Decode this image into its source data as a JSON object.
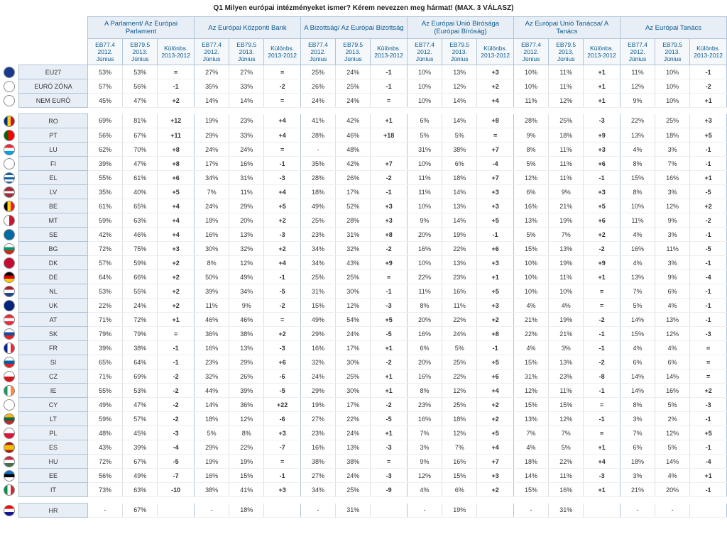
{
  "title": "Q1 Milyen európai intézményeket ismer? Kérem nevezzen meg hármat! (MAX. 3 VÁLASZ)",
  "groups": [
    "A Parlament/ Az Európai Parlament",
    "Az Európai Központi Bank",
    "A Bizottság/ Az Európai Bizottság",
    "Az Európai Unió Bírósága (Európai Bíróság)",
    "Az Európai Unió Tanácsa/ A Tanács",
    "Az Európai Tanács"
  ],
  "subcols": [
    "EB77.4 2012. Június",
    "EB79.5 2013. Június",
    "Különbs. 2013-2012"
  ],
  "flag_colors": {
    "EU27": "#1a3a8e",
    "EURÓ ZÓNA": "#ffffff",
    "NEM EURÓ": "#ffffff",
    "RO": "linear-gradient(90deg,#002b7f 33%,#fcd116 33% 66%,#ce1126 66%)",
    "PT": "linear-gradient(90deg,#006600 40%,#ff0000 40%)",
    "LU": "linear-gradient(#ed2939 33%,#fff 33% 66%,#00a1de 66%)",
    "FI": "#fff",
    "EL": "repeating-linear-gradient(#0d5eaf 0 3px,#fff 3px 6px)",
    "LV": "linear-gradient(#9e3039 40%,#fff 40% 60%,#9e3039 60%)",
    "BE": "linear-gradient(90deg,#000 33%,#ffd90c 33% 66%,#f31830 66%)",
    "MT": "linear-gradient(90deg,#fff 50%,#cf142b 50%)",
    "SE": "#006aa7",
    "BG": "linear-gradient(#fff 33%,#00966e 33% 66%,#d62612 66%)",
    "DK": "#c60c30",
    "DE": "linear-gradient(#000 33%,#dd0000 33% 66%,#ffce00 66%)",
    "NL": "linear-gradient(#ae1c28 33%,#fff 33% 66%,#21468b 66%)",
    "UK": "#00247d",
    "AT": "linear-gradient(#ed2939 33%,#fff 33% 66%,#ed2939 66%)",
    "SK": "linear-gradient(#fff 33%,#0b4ea2 33% 66%,#ee1c25 66%)",
    "FR": "linear-gradient(90deg,#002395 33%,#fff 33% 66%,#ed2939 66%)",
    "SI": "linear-gradient(#fff 33%,#005da4 33% 66%,#ed1c24 66%)",
    "CZ": "linear-gradient(#fff 50%,#d7141a 50%)",
    "IE": "linear-gradient(90deg,#169b62 33%,#fff 33% 66%,#ff883e 66%)",
    "CY": "#fff",
    "LT": "linear-gradient(#fdb913 33%,#006a44 33% 66%,#c1272d 66%)",
    "PL": "linear-gradient(#fff 50%,#dc143c 50%)",
    "ES": "linear-gradient(#aa151b 25%,#f1bf00 25% 75%,#aa151b 75%)",
    "HU": "linear-gradient(#cd2a3e 33%,#fff 33% 66%,#436f4d 66%)",
    "EE": "linear-gradient(#0072ce 33%,#000 33% 66%,#fff 66%)",
    "IT": "linear-gradient(90deg,#009246 33%,#fff 33% 66%,#ce2b37 66%)",
    "HR": "linear-gradient(#ff0000 33%,#fff 33% 66%,#171796 66%)"
  },
  "sections": [
    [
      {
        "label": "EU27",
        "v": [
          "53%",
          "53%",
          "=",
          "27%",
          "27%",
          "=",
          "25%",
          "24%",
          "-1",
          "10%",
          "13%",
          "+3",
          "10%",
          "11%",
          "+1",
          "11%",
          "10%",
          "-1"
        ]
      },
      {
        "label": "EURÓ ZÓNA",
        "v": [
          "57%",
          "56%",
          "-1",
          "35%",
          "33%",
          "-2",
          "26%",
          "25%",
          "-1",
          "10%",
          "12%",
          "+2",
          "10%",
          "11%",
          "+1",
          "12%",
          "10%",
          "-2"
        ]
      },
      {
        "label": "NEM EURÓ",
        "v": [
          "45%",
          "47%",
          "+2",
          "14%",
          "14%",
          "=",
          "24%",
          "24%",
          "=",
          "10%",
          "14%",
          "+4",
          "11%",
          "12%",
          "+1",
          "9%",
          "10%",
          "+1"
        ]
      }
    ],
    [
      {
        "label": "RO",
        "v": [
          "69%",
          "81%",
          "+12",
          "19%",
          "23%",
          "+4",
          "41%",
          "42%",
          "+1",
          "6%",
          "14%",
          "+8",
          "28%",
          "25%",
          "-3",
          "22%",
          "25%",
          "+3"
        ]
      },
      {
        "label": "PT",
        "v": [
          "56%",
          "67%",
          "+11",
          "29%",
          "33%",
          "+4",
          "28%",
          "46%",
          "+18",
          "5%",
          "5%",
          "=",
          "9%",
          "18%",
          "+9",
          "13%",
          "18%",
          "+5"
        ]
      },
      {
        "label": "LU",
        "v": [
          "62%",
          "70%",
          "+8",
          "24%",
          "24%",
          "=",
          "-",
          "48%",
          " ",
          "31%",
          "38%",
          "+7",
          "8%",
          "11%",
          "+3",
          "4%",
          "3%",
          "-1"
        ]
      },
      {
        "label": "FI",
        "v": [
          "39%",
          "47%",
          "+8",
          "17%",
          "16%",
          "-1",
          "35%",
          "42%",
          "+7",
          "10%",
          "6%",
          "-4",
          "5%",
          "11%",
          "+6",
          "8%",
          "7%",
          "-1"
        ]
      },
      {
        "label": "EL",
        "v": [
          "55%",
          "61%",
          "+6",
          "34%",
          "31%",
          "-3",
          "28%",
          "26%",
          "-2",
          "11%",
          "18%",
          "+7",
          "12%",
          "11%",
          "-1",
          "15%",
          "16%",
          "+1"
        ]
      },
      {
        "label": "LV",
        "v": [
          "35%",
          "40%",
          "+5",
          "7%",
          "11%",
          "+4",
          "18%",
          "17%",
          "-1",
          "11%",
          "14%",
          "+3",
          "6%",
          "9%",
          "+3",
          "8%",
          "3%",
          "-5"
        ]
      },
      {
        "label": "BE",
        "v": [
          "61%",
          "65%",
          "+4",
          "24%",
          "29%",
          "+5",
          "49%",
          "52%",
          "+3",
          "10%",
          "13%",
          "+3",
          "16%",
          "21%",
          "+5",
          "10%",
          "12%",
          "+2"
        ]
      },
      {
        "label": "MT",
        "v": [
          "59%",
          "63%",
          "+4",
          "18%",
          "20%",
          "+2",
          "25%",
          "28%",
          "+3",
          "9%",
          "14%",
          "+5",
          "13%",
          "19%",
          "+6",
          "11%",
          "9%",
          "-2"
        ]
      },
      {
        "label": "SE",
        "v": [
          "42%",
          "46%",
          "+4",
          "16%",
          "13%",
          "-3",
          "23%",
          "31%",
          "+8",
          "20%",
          "19%",
          "-1",
          "5%",
          "7%",
          "+2",
          "4%",
          "3%",
          "-1"
        ]
      },
      {
        "label": "BG",
        "v": [
          "72%",
          "75%",
          "+3",
          "30%",
          "32%",
          "+2",
          "34%",
          "32%",
          "-2",
          "16%",
          "22%",
          "+6",
          "15%",
          "13%",
          "-2",
          "16%",
          "11%",
          "-5"
        ]
      },
      {
        "label": "DK",
        "v": [
          "57%",
          "59%",
          "+2",
          "8%",
          "12%",
          "+4",
          "34%",
          "43%",
          "+9",
          "10%",
          "13%",
          "+3",
          "10%",
          "19%",
          "+9",
          "4%",
          "3%",
          "-1"
        ]
      },
      {
        "label": "DE",
        "v": [
          "64%",
          "66%",
          "+2",
          "50%",
          "49%",
          "-1",
          "25%",
          "25%",
          "=",
          "22%",
          "23%",
          "+1",
          "10%",
          "11%",
          "+1",
          "13%",
          "9%",
          "-4"
        ]
      },
      {
        "label": "NL",
        "v": [
          "53%",
          "55%",
          "+2",
          "39%",
          "34%",
          "-5",
          "31%",
          "30%",
          "-1",
          "11%",
          "16%",
          "+5",
          "10%",
          "10%",
          "=",
          "7%",
          "6%",
          "-1"
        ]
      },
      {
        "label": "UK",
        "v": [
          "22%",
          "24%",
          "+2",
          "11%",
          "9%",
          "-2",
          "15%",
          "12%",
          "-3",
          "8%",
          "11%",
          "+3",
          "4%",
          "4%",
          "=",
          "5%",
          "4%",
          "-1"
        ]
      },
      {
        "label": "AT",
        "v": [
          "71%",
          "72%",
          "+1",
          "46%",
          "46%",
          "=",
          "49%",
          "54%",
          "+5",
          "20%",
          "22%",
          "+2",
          "21%",
          "19%",
          "-2",
          "14%",
          "13%",
          "-1"
        ]
      },
      {
        "label": "SK",
        "v": [
          "79%",
          "79%",
          "=",
          "36%",
          "38%",
          "+2",
          "29%",
          "24%",
          "-5",
          "16%",
          "24%",
          "+8",
          "22%",
          "21%",
          "-1",
          "15%",
          "12%",
          "-3"
        ]
      },
      {
        "label": "FR",
        "v": [
          "39%",
          "38%",
          "-1",
          "16%",
          "13%",
          "-3",
          "16%",
          "17%",
          "+1",
          "6%",
          "5%",
          "-1",
          "4%",
          "3%",
          "-1",
          "4%",
          "4%",
          "="
        ]
      },
      {
        "label": "SI",
        "v": [
          "65%",
          "64%",
          "-1",
          "23%",
          "29%",
          "+6",
          "32%",
          "30%",
          "-2",
          "20%",
          "25%",
          "+5",
          "15%",
          "13%",
          "-2",
          "6%",
          "6%",
          "="
        ]
      },
      {
        "label": "CZ",
        "v": [
          "71%",
          "69%",
          "-2",
          "32%",
          "26%",
          "-6",
          "24%",
          "25%",
          "+1",
          "16%",
          "22%",
          "+6",
          "31%",
          "23%",
          "-8",
          "14%",
          "14%",
          "="
        ]
      },
      {
        "label": "IE",
        "v": [
          "55%",
          "53%",
          "-2",
          "44%",
          "39%",
          "-5",
          "29%",
          "30%",
          "+1",
          "8%",
          "12%",
          "+4",
          "12%",
          "11%",
          "-1",
          "14%",
          "16%",
          "+2"
        ]
      },
      {
        "label": "CY",
        "v": [
          "49%",
          "47%",
          "-2",
          "14%",
          "36%",
          "+22",
          "19%",
          "17%",
          "-2",
          "23%",
          "25%",
          "+2",
          "15%",
          "15%",
          "=",
          "8%",
          "5%",
          "-3"
        ]
      },
      {
        "label": "LT",
        "v": [
          "59%",
          "57%",
          "-2",
          "18%",
          "12%",
          "-6",
          "27%",
          "22%",
          "-5",
          "16%",
          "18%",
          "+2",
          "13%",
          "12%",
          "-1",
          "3%",
          "2%",
          "-1"
        ]
      },
      {
        "label": "PL",
        "v": [
          "48%",
          "45%",
          "-3",
          "5%",
          "8%",
          "+3",
          "23%",
          "24%",
          "+1",
          "7%",
          "12%",
          "+5",
          "7%",
          "7%",
          "=",
          "7%",
          "12%",
          "+5"
        ]
      },
      {
        "label": "ES",
        "v": [
          "43%",
          "39%",
          "-4",
          "29%",
          "22%",
          "-7",
          "16%",
          "13%",
          "-3",
          "3%",
          "7%",
          "+4",
          "4%",
          "5%",
          "+1",
          "6%",
          "5%",
          "-1"
        ]
      },
      {
        "label": "HU",
        "v": [
          "72%",
          "67%",
          "-5",
          "19%",
          "19%",
          "=",
          "38%",
          "38%",
          "=",
          "9%",
          "16%",
          "+7",
          "18%",
          "22%",
          "+4",
          "18%",
          "14%",
          "-4"
        ]
      },
      {
        "label": "EE",
        "v": [
          "56%",
          "49%",
          "-7",
          "16%",
          "15%",
          "-1",
          "27%",
          "24%",
          "-3",
          "12%",
          "15%",
          "+3",
          "14%",
          "11%",
          "-3",
          "3%",
          "4%",
          "+1"
        ]
      },
      {
        "label": "IT",
        "v": [
          "73%",
          "63%",
          "-10",
          "38%",
          "41%",
          "+3",
          "34%",
          "25%",
          "-9",
          "4%",
          "6%",
          "+2",
          "15%",
          "16%",
          "+1",
          "21%",
          "20%",
          "-1"
        ]
      }
    ],
    [
      {
        "label": "HR",
        "v": [
          "-",
          "67%",
          " ",
          "-",
          "18%",
          " ",
          "-",
          "31%",
          " ",
          "-",
          "19%",
          " ",
          "-",
          "31%",
          " ",
          "-",
          "-",
          " "
        ]
      }
    ]
  ]
}
